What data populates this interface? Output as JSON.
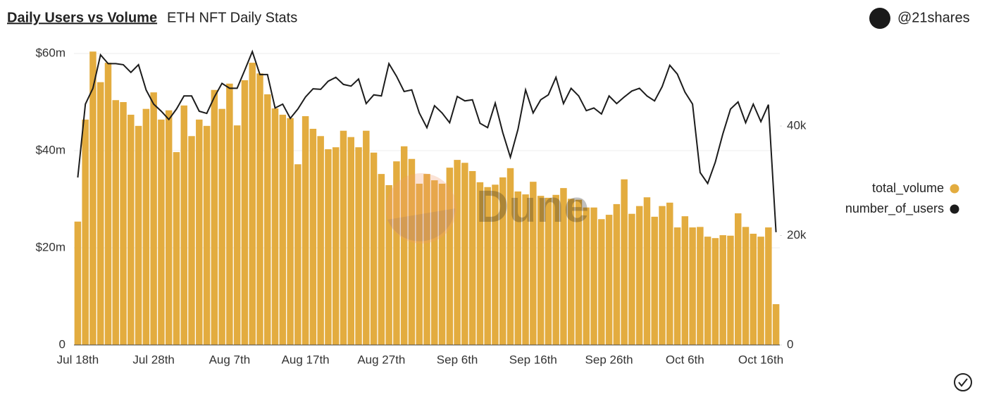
{
  "chart_data": {
    "type": "bar_line",
    "title": "Daily Users vs Volume",
    "subtitle": "ETH NFT Daily Stats",
    "author": "@21shares",
    "watermark": "Dune",
    "categories": [
      "Jul 18th",
      null,
      null,
      null,
      null,
      null,
      null,
      null,
      null,
      null,
      "Jul 28th",
      null,
      null,
      null,
      null,
      null,
      null,
      null,
      null,
      null,
      "Aug 7th",
      null,
      null,
      null,
      null,
      null,
      null,
      null,
      null,
      null,
      "Aug 17th",
      null,
      null,
      null,
      null,
      null,
      null,
      null,
      null,
      null,
      "Aug 27th",
      null,
      null,
      null,
      null,
      null,
      null,
      null,
      null,
      null,
      "Sep 6th",
      null,
      null,
      null,
      null,
      null,
      null,
      null,
      null,
      null,
      "Sep 16th",
      null,
      null,
      null,
      null,
      null,
      null,
      null,
      null,
      null,
      "Sep 26th",
      null,
      null,
      null,
      null,
      null,
      null,
      null,
      null,
      null,
      "Oct 6th",
      null,
      null,
      null,
      null,
      null,
      null,
      null,
      null,
      null,
      "Oct 16th",
      null,
      null
    ],
    "series": [
      {
        "name": "total_volume",
        "color": "#e3ac3f",
        "kind": "bar",
        "axis": "y",
        "values": [
          25.4,
          46.4,
          60.4,
          54.1,
          58.1,
          50.4,
          50.0,
          47.4,
          45.1,
          48.6,
          52.0,
          46.4,
          48.3,
          39.7,
          49.3,
          43.0,
          46.4,
          45.1,
          52.5,
          48.6,
          53.8,
          45.2,
          54.5,
          58.1,
          55.9,
          51.6,
          48.7,
          47.4,
          46.7,
          37.2,
          47.1,
          44.5,
          43.0,
          40.3,
          40.7,
          44.1,
          42.8,
          40.7,
          44.1,
          39.6,
          35.2,
          32.9,
          37.8,
          40.9,
          38.3,
          33.2,
          35.2,
          33.9,
          33.2,
          36.5,
          38.1,
          37.5,
          35.8,
          33.5,
          32.5,
          33.0,
          34.5,
          36.4,
          31.6,
          31.0,
          33.6,
          30.7,
          30.3,
          30.9,
          32.3,
          30.1,
          29.9,
          28.3,
          28.3,
          25.9,
          26.8,
          29.0,
          34.1,
          27.0,
          28.6,
          30.4,
          26.4,
          28.6,
          29.3,
          24.2,
          26.5,
          24.2,
          24.3,
          22.3,
          22.0,
          22.6,
          22.5,
          27.1,
          24.3,
          22.9,
          22.3,
          24.2,
          8.4
        ]
      },
      {
        "name": "number_of_users",
        "color": "#1c1c1c",
        "kind": "line",
        "axis": "y2",
        "values": [
          30.6,
          44.0,
          46.9,
          53.0,
          51.4,
          51.4,
          51.2,
          49.8,
          51.2,
          46.6,
          44.0,
          42.7,
          41.2,
          43.1,
          45.5,
          45.5,
          42.7,
          42.3,
          45.3,
          47.8,
          46.9,
          46.9,
          50.2,
          53.6,
          49.4,
          49.4,
          43.3,
          44.0,
          41.4,
          43.1,
          45.3,
          46.8,
          46.7,
          48.2,
          48.9,
          47.6,
          47.3,
          48.6,
          44.1,
          45.7,
          45.5,
          51.4,
          49.1,
          46.3,
          46.6,
          42.4,
          39.7,
          43.7,
          42.4,
          40.6,
          45.4,
          44.6,
          44.8,
          40.5,
          39.7,
          44.2,
          38.8,
          34.3,
          39.4,
          46.6,
          42.4,
          44.8,
          45.7,
          48.9,
          44.1,
          46.9,
          45.5,
          42.8,
          43.3,
          42.2,
          45.5,
          44.1,
          45.3,
          46.4,
          46.9,
          45.5,
          44.6,
          47.2,
          51.1,
          49.5,
          46.2,
          44.0,
          31.5,
          29.5,
          33.4,
          38.6,
          43.1,
          44.4,
          40.6,
          44.0,
          40.8,
          43.9,
          20.6
        ]
      }
    ],
    "ylim": [
      0,
      60
    ],
    "yticks": [
      0,
      {
        "value": 20,
        "label": "$20m"
      },
      {
        "value": 40,
        "label": "$40m"
      },
      {
        "value": 60,
        "label": "$60m"
      }
    ],
    "y2lim": [
      0,
      53.25
    ],
    "y2ticks": [
      0,
      {
        "value": 20,
        "label": "20k"
      },
      {
        "value": 40,
        "label": "40k"
      }
    ],
    "grid": true,
    "legend": "right"
  }
}
